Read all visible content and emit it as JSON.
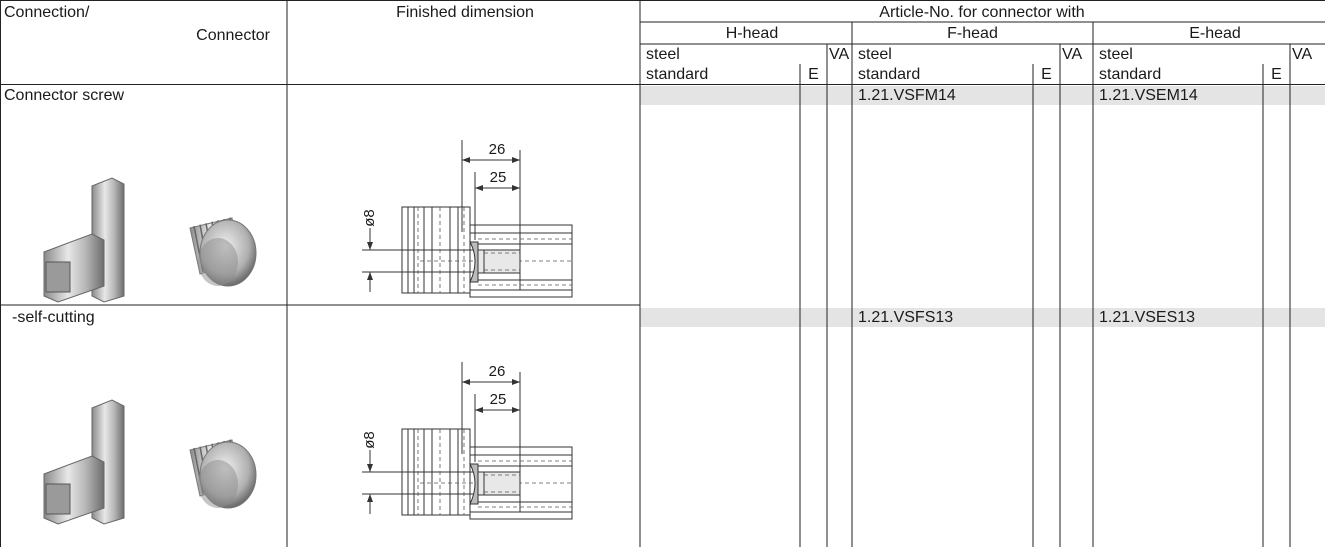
{
  "header": {
    "connection": "Connection/",
    "connector": "Connector",
    "finished_dimension": "Finished dimension",
    "article_no": "Article-No. for connector with",
    "heads": [
      {
        "name": "H-head",
        "material": "steel",
        "grade": "standard",
        "e": "E",
        "va": "VA"
      },
      {
        "name": "F-head",
        "material": "steel",
        "grade": "standard",
        "e": "E",
        "va": "VA"
      },
      {
        "name": "E-head",
        "material": "steel",
        "grade": "standard",
        "e": "E",
        "va": "VA"
      }
    ]
  },
  "rows": [
    {
      "connection": "Connector screw",
      "dimensions": {
        "outer": "26",
        "inner": "25",
        "diameter": "ø8"
      },
      "articles": {
        "f_head": "1.21.VSFM14",
        "e_head": "1.21.VSEM14"
      }
    },
    {
      "connection": "-self-cutting",
      "dimensions": {
        "outer": "26",
        "inner": "25",
        "diameter": "ø8"
      },
      "articles": {
        "f_head": "1.21.VSFS13",
        "e_head": "1.21.VSES13"
      }
    }
  ]
}
